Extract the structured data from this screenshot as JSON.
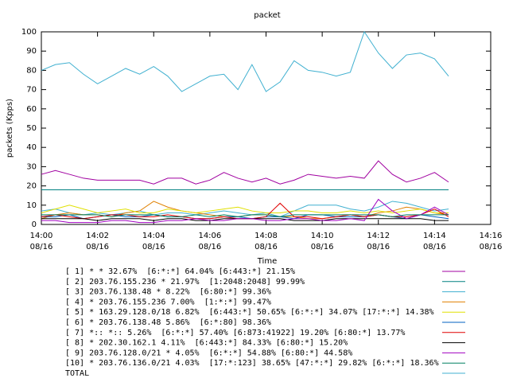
{
  "chart_data": {
    "type": "line",
    "title": "packet",
    "x_label": "Time",
    "y_label": "packets (Kpps)",
    "x": [
      0,
      0.5,
      1,
      1.5,
      2,
      2.5,
      3,
      3.5,
      4,
      4.5,
      5,
      5.5,
      6,
      6.5,
      7,
      7.5,
      8,
      8.5,
      9,
      9.5,
      10,
      10.5,
      11,
      11.5,
      12,
      12.5,
      13,
      13.5,
      14,
      14.5
    ],
    "xlim": [
      0,
      16
    ],
    "xticks": [
      {
        "value": 0,
        "label": [
          "14:00",
          "08/16"
        ]
      },
      {
        "value": 2,
        "label": [
          "14:02",
          "08/16"
        ]
      },
      {
        "value": 4,
        "label": [
          "14:04",
          "08/16"
        ]
      },
      {
        "value": 6,
        "label": [
          "14:06",
          "08/16"
        ]
      },
      {
        "value": 8,
        "label": [
          "14:08",
          "08/16"
        ]
      },
      {
        "value": 10,
        "label": [
          "14:10",
          "08/16"
        ]
      },
      {
        "value": 12,
        "label": [
          "14:12",
          "08/16"
        ]
      },
      {
        "value": 14,
        "label": [
          "14:14",
          "08/16"
        ]
      },
      {
        "value": 16,
        "label": [
          "14:16",
          "08/16"
        ]
      }
    ],
    "ylim": [
      0,
      100
    ],
    "yticks": [
      0,
      10,
      20,
      30,
      40,
      50,
      60,
      70,
      80,
      90,
      100
    ],
    "grid": false,
    "series": [
      {
        "name": "[ 1] * * 32.67%  [6:*:*] 64.04% [6:443:*] 21.15%",
        "color": "#a000a0",
        "values": [
          26,
          28,
          26,
          24,
          23,
          23,
          23,
          23,
          21,
          24,
          24,
          21,
          23,
          27,
          24,
          22,
          24,
          21,
          23,
          26,
          25,
          24,
          25,
          24,
          33,
          26,
          22,
          24,
          27,
          22
        ]
      },
      {
        "name": "[ 2] 203.76.155.236 * 21.97%  [1:2048:2048] 99.99%",
        "color": "#008080",
        "values": [
          18,
          18,
          18,
          18,
          18,
          18,
          18,
          18,
          18,
          18,
          18,
          18,
          18,
          18,
          18,
          18,
          18,
          18,
          18,
          18,
          18,
          18,
          18,
          18,
          18,
          18,
          18,
          18,
          18,
          18
        ]
      },
      {
        "name": "[ 3] 203.76.138.48 * 8.22%  [6:80:*] 99.36%",
        "color": "#40b0d0",
        "values": [
          7,
          8,
          6,
          5,
          6,
          5,
          6,
          7,
          5,
          6,
          6,
          5,
          6,
          7,
          6,
          5,
          6,
          4,
          7,
          10,
          10,
          10,
          8,
          7,
          9,
          12,
          11,
          9,
          7,
          8
        ]
      },
      {
        "name": "[ 4] * 203.76.155.236 7.00%  [1:*:*] 99.47%",
        "color": "#e08000",
        "values": [
          3,
          5,
          6,
          5,
          5,
          4,
          6,
          7,
          12,
          9,
          7,
          6,
          5,
          4,
          4,
          5,
          5,
          4,
          4,
          3,
          3,
          4,
          5,
          4,
          6,
          7,
          9,
          8,
          6,
          5
        ]
      },
      {
        "name": "[ 5] * 163.29.128.0/18 6.82%  [6:443:*] 50.65% [6:*:*] 34.07% [17:*:*] 14.38%",
        "color": "#e0e000",
        "values": [
          6,
          8,
          10,
          8,
          6,
          7,
          8,
          6,
          6,
          8,
          7,
          6,
          7,
          8,
          9,
          7,
          6,
          6,
          7,
          7,
          6,
          6,
          7,
          6,
          7,
          6,
          7,
          8,
          6,
          6
        ]
      },
      {
        "name": "[ 6] * 203.76.138.48 5.86%  [6:*:80] 98.36%",
        "color": "#0060c0",
        "values": [
          4,
          4,
          5,
          3,
          4,
          5,
          4,
          4,
          5,
          4,
          4,
          3,
          3,
          4,
          4,
          3,
          4,
          4,
          3,
          5,
          5,
          4,
          4,
          4,
          5,
          4,
          3,
          5,
          4,
          3
        ]
      },
      {
        "name": "[ 7] *:: *:: 5.26%  [6:*:*] 57.40% [6:873:41922] 19.20% [6:80:*] 13.77%",
        "color": "#e00000",
        "values": [
          4,
          5,
          4,
          3,
          4,
          5,
          5,
          4,
          4,
          5,
          4,
          3,
          3,
          4,
          3,
          3,
          4,
          11,
          4,
          4,
          3,
          4,
          5,
          4,
          5,
          4,
          4,
          5,
          8,
          4
        ]
      },
      {
        "name": "[ 8] * 202.30.162.1 4.11%  [6:443:*] 84.33% [6:80:*] 15.20%",
        "color": "#000000",
        "values": [
          3,
          3,
          3,
          3,
          2,
          3,
          3,
          3,
          2,
          3,
          3,
          2,
          2,
          3,
          3,
          3,
          3,
          3,
          2,
          2,
          2,
          3,
          3,
          3,
          3,
          3,
          3,
          3,
          2,
          2
        ]
      },
      {
        "name": "[ 9] 203.76.128.0/21 * 4.05%  [6:*:*] 54.88% [6:80:*] 44.58%",
        "color": "#a000c0",
        "values": [
          2,
          2,
          1,
          1,
          1,
          2,
          2,
          1,
          1,
          2,
          2,
          3,
          2,
          2,
          3,
          3,
          2,
          2,
          3,
          3,
          2,
          2,
          3,
          2,
          13,
          7,
          3,
          5,
          9,
          5
        ]
      },
      {
        "name": "[10] * 203.76.136.0/21 4.03%  [17:*:123] 38.65% [47:*:*] 29.82% [6:*:*] 18.36%",
        "color": "#008060",
        "values": [
          5,
          5,
          5,
          5,
          5,
          4,
          5,
          5,
          5,
          4,
          4,
          5,
          4,
          5,
          4,
          5,
          5,
          4,
          5,
          5,
          5,
          5,
          5,
          5,
          5,
          4,
          5,
          5,
          5,
          5
        ]
      },
      {
        "name": "TOTAL",
        "color": "#40b0d0",
        "values": [
          80,
          83,
          84,
          78,
          73,
          77,
          81,
          78,
          82,
          77,
          69,
          73,
          77,
          78,
          70,
          83,
          69,
          74,
          85,
          80,
          79,
          77,
          79,
          100,
          89,
          81,
          88,
          89,
          86,
          77
        ]
      }
    ]
  }
}
